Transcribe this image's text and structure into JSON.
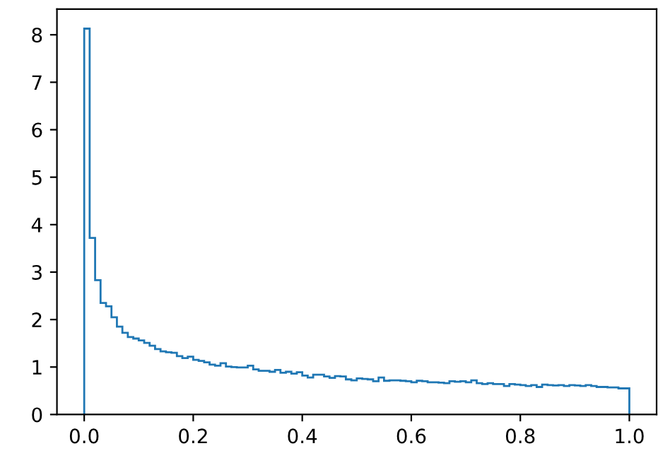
{
  "chart_data": {
    "type": "histogram",
    "color": "#1f77b4",
    "bins": [
      0,
      0.01,
      0.02,
      0.03,
      0.04,
      0.05,
      0.06,
      0.07,
      0.08,
      0.09,
      0.1,
      0.11,
      0.12,
      0.13,
      0.14,
      0.15,
      0.16,
      0.17,
      0.18,
      0.19,
      0.2,
      0.21,
      0.22,
      0.23,
      0.24,
      0.25,
      0.26,
      0.27,
      0.28,
      0.29,
      0.3,
      0.31,
      0.32,
      0.33,
      0.34,
      0.35,
      0.36,
      0.37,
      0.38,
      0.39,
      0.4,
      0.41,
      0.42,
      0.43,
      0.44,
      0.45,
      0.46,
      0.47,
      0.48,
      0.49,
      0.5,
      0.51,
      0.52,
      0.53,
      0.54,
      0.55,
      0.56,
      0.57,
      0.58,
      0.59,
      0.6,
      0.61,
      0.62,
      0.63,
      0.64,
      0.65,
      0.66,
      0.67,
      0.68,
      0.69,
      0.7,
      0.71,
      0.72,
      0.73,
      0.74,
      0.75,
      0.76,
      0.77,
      0.78,
      0.79,
      0.8,
      0.81,
      0.82,
      0.83,
      0.84,
      0.85,
      0.86,
      0.87,
      0.88,
      0.89,
      0.9,
      0.91,
      0.92,
      0.93,
      0.94,
      0.95,
      0.96,
      0.97,
      0.98,
      0.99,
      1.0
    ],
    "values": [
      8.13,
      3.72,
      2.83,
      2.35,
      2.28,
      2.05,
      1.85,
      1.72,
      1.63,
      1.6,
      1.56,
      1.51,
      1.45,
      1.38,
      1.33,
      1.31,
      1.3,
      1.23,
      1.19,
      1.22,
      1.15,
      1.13,
      1.1,
      1.05,
      1.03,
      1.08,
      1.01,
      1.0,
      0.99,
      0.99,
      1.03,
      0.95,
      0.92,
      0.92,
      0.9,
      0.94,
      0.88,
      0.9,
      0.86,
      0.89,
      0.82,
      0.78,
      0.84,
      0.84,
      0.8,
      0.77,
      0.81,
      0.8,
      0.74,
      0.72,
      0.76,
      0.75,
      0.74,
      0.7,
      0.78,
      0.71,
      0.72,
      0.72,
      0.71,
      0.7,
      0.68,
      0.71,
      0.7,
      0.68,
      0.68,
      0.67,
      0.66,
      0.7,
      0.69,
      0.7,
      0.68,
      0.72,
      0.66,
      0.64,
      0.66,
      0.64,
      0.64,
      0.6,
      0.64,
      0.63,
      0.62,
      0.6,
      0.62,
      0.58,
      0.63,
      0.62,
      0.61,
      0.62,
      0.6,
      0.62,
      0.61,
      0.6,
      0.62,
      0.6,
      0.58,
      0.58,
      0.57,
      0.57,
      0.55,
      0.55
    ],
    "xlim": [
      -0.05,
      1.05
    ],
    "ylim": [
      0,
      8.54
    ],
    "xticks": [
      {
        "value": 0,
        "label": "0.0"
      },
      0.2,
      0.4,
      0.6,
      0.8,
      {
        "value": 1,
        "label": "1.0"
      }
    ],
    "yticks": [
      0,
      1,
      2,
      3,
      4,
      5,
      6,
      7,
      8
    ],
    "grid": false
  }
}
